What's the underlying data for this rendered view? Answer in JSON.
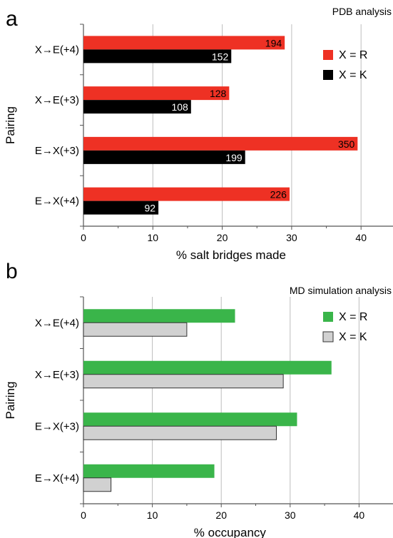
{
  "chart_data": [
    {
      "type": "bar",
      "orientation": "horizontal",
      "panel_label": "a",
      "title": "PDB analysis",
      "xlabel": "% salt bridges made",
      "ylabel": "Pairing",
      "categories": [
        "X→E(+4)",
        "X→E(+3)",
        "E→X(+3)",
        "E→X(+4)"
      ],
      "xlim": [
        0,
        45
      ],
      "xticks": [
        0,
        10,
        20,
        30,
        40
      ],
      "grid": "vertical",
      "legend_position": "top-right",
      "series": [
        {
          "name": "X = R",
          "color": "#ee3124",
          "values": [
            29,
            21,
            39.5,
            29.7
          ],
          "labels": [
            "194",
            "128",
            "350",
            "226"
          ]
        },
        {
          "name": "X = K",
          "color": "#000000",
          "values": [
            21.3,
            15.5,
            23.3,
            10.8
          ],
          "labels": [
            "152",
            "108",
            "199",
            "92"
          ]
        }
      ]
    },
    {
      "type": "bar",
      "orientation": "horizontal",
      "panel_label": "b",
      "title": "MD simulation analysis",
      "xlabel": "% occupancy",
      "ylabel": "Pairing",
      "categories": [
        "X→E(+4)",
        "X→E(+3)",
        "E→X(+3)",
        "E→X(+4)"
      ],
      "xlim": [
        0,
        45
      ],
      "xticks": [
        0,
        10,
        20,
        30,
        40
      ],
      "grid": "vertical",
      "legend_position": "top-right",
      "series": [
        {
          "name": "X = R",
          "color": "#3ab54a",
          "values": [
            22,
            36,
            31,
            19
          ]
        },
        {
          "name": "X = K",
          "color": "#d1d1d1",
          "values": [
            15,
            29,
            28,
            4
          ]
        }
      ]
    }
  ]
}
